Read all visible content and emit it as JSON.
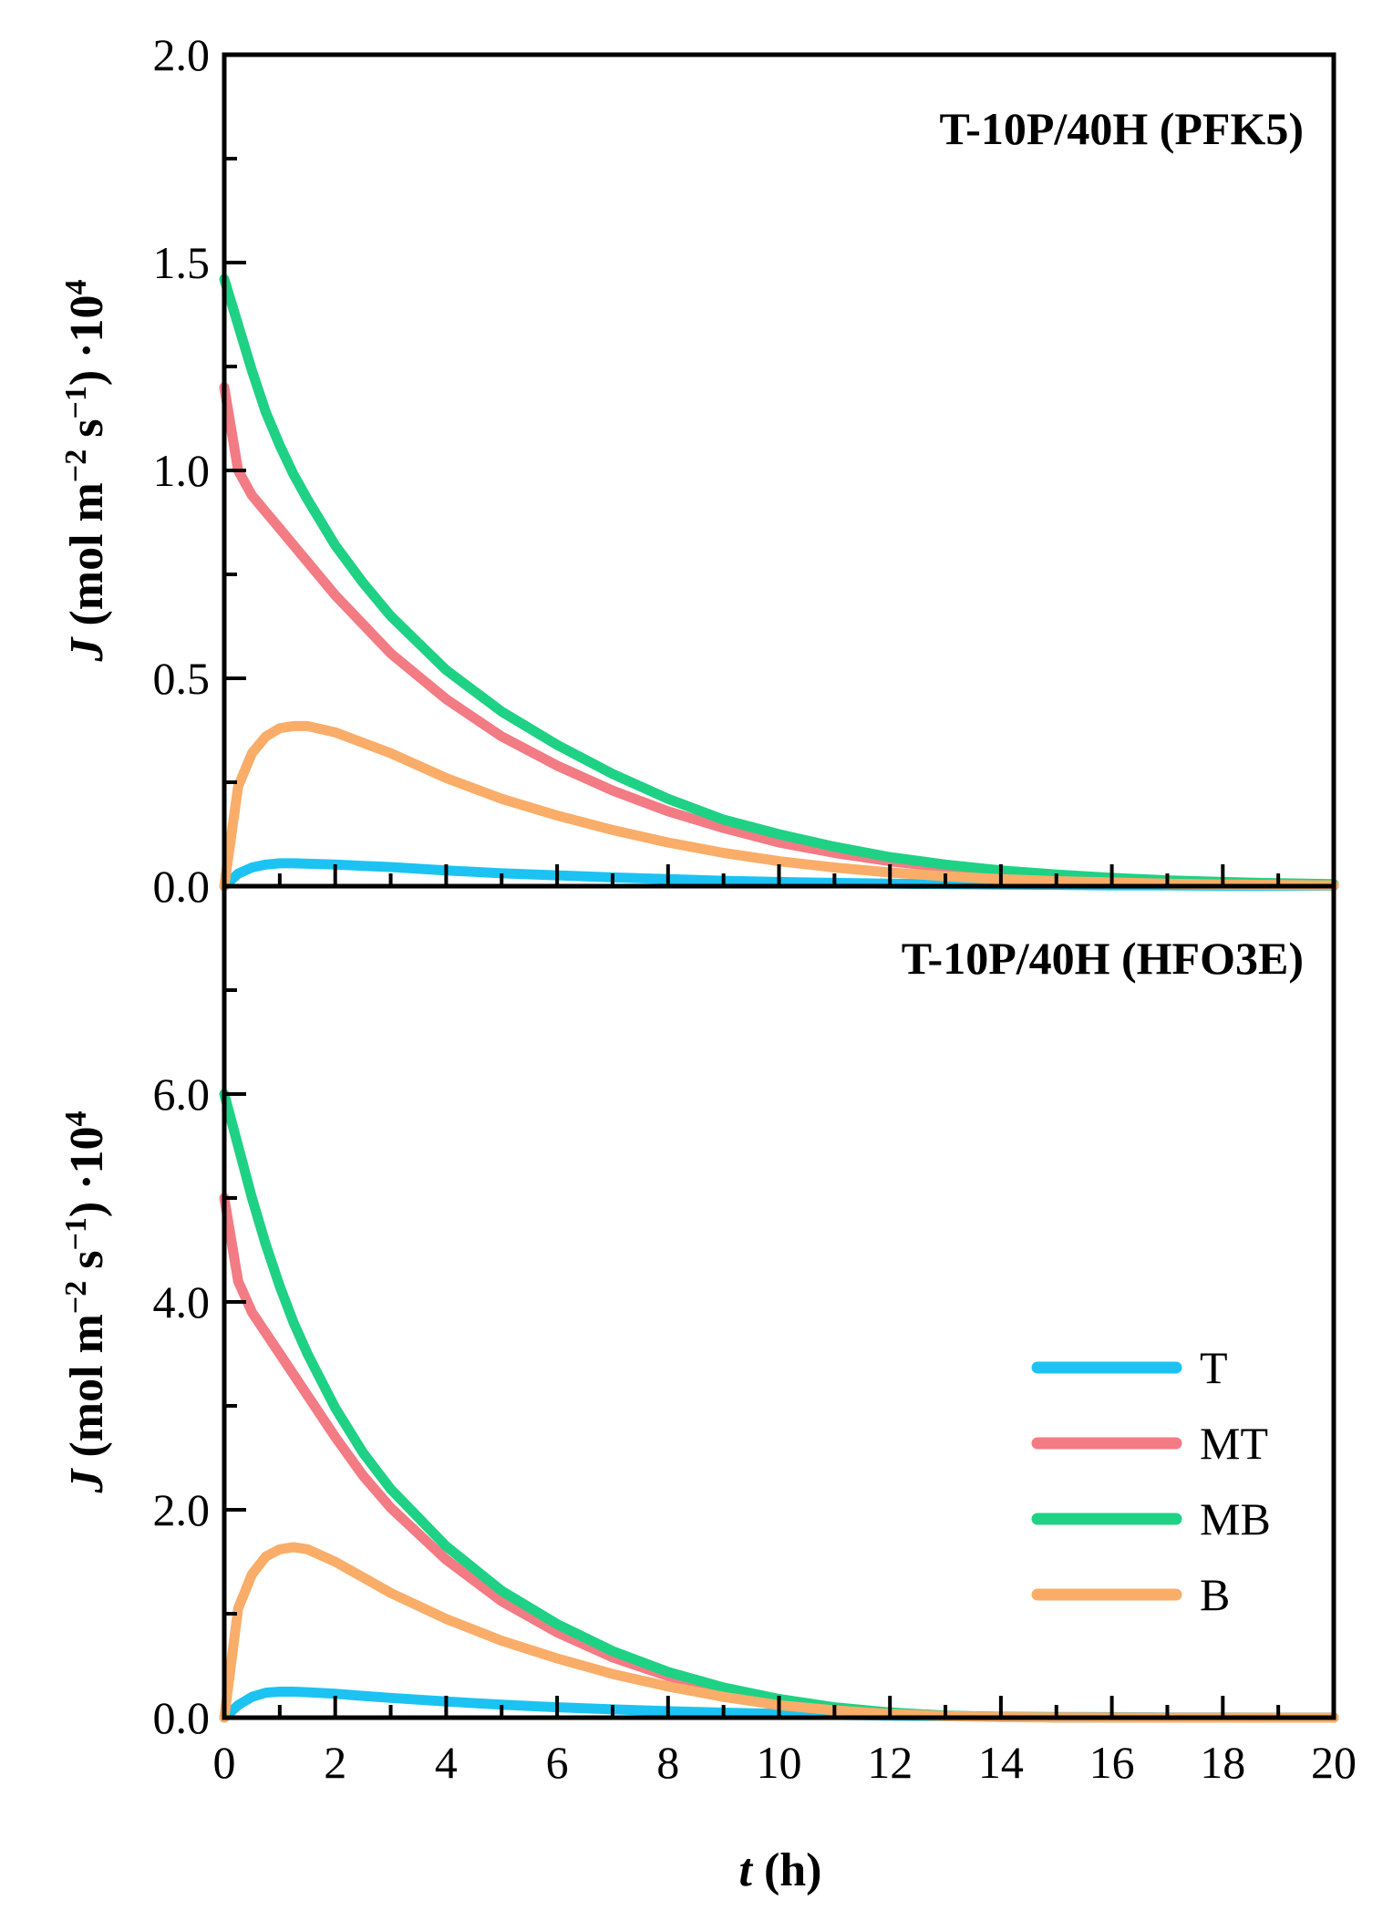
{
  "chart_data": {
    "type": "line",
    "xlabel": {
      "var": "t",
      "unit": " (h)"
    },
    "xlim": [
      0,
      20
    ],
    "xticks": [
      "0",
      "2",
      "4",
      "6",
      "8",
      "10",
      "12",
      "14",
      "16",
      "18",
      "20"
    ],
    "colors": {
      "T": "#1cc3f2",
      "MT": "#f27b84",
      "MB": "#1fd184",
      "B": "#f9ad69"
    },
    "legend": {
      "location": "lower-right",
      "panel": "bottom",
      "entries": [
        "T",
        "MT",
        "MB",
        "B"
      ]
    },
    "x": [
      0,
      0.25,
      0.5,
      0.75,
      1,
      1.25,
      1.5,
      2,
      2.5,
      3,
      4,
      5,
      6,
      7,
      8,
      9,
      10,
      11,
      12,
      13,
      14,
      15,
      16,
      17,
      18,
      19,
      20
    ],
    "panels": [
      {
        "title": "T-10P/40H (PFK5)",
        "ylabel": {
          "var": "J",
          "unit": " (mol m",
          "exp1": "−2",
          "mid": " s",
          "exp2": "−1",
          "tail": ") ·10",
          "exp3": "4"
        },
        "ylim": [
          0,
          2.0
        ],
        "yticks": [
          "0.0",
          "0.5",
          "1.0",
          "1.5",
          "2.0"
        ],
        "series": [
          {
            "name": "T",
            "values": [
              0,
              0.03,
              0.045,
              0.052,
              0.055,
              0.055,
              0.054,
              0.052,
              0.049,
              0.046,
              0.038,
              0.031,
              0.026,
              0.021,
              0.017,
              0.013,
              0.01,
              0.008,
              0.006,
              0.005,
              0.004,
              0.003,
              0.002,
              0.002,
              0.001,
              0.001,
              0.001
            ]
          },
          {
            "name": "MT",
            "values": [
              1.2,
              1.0,
              0.94,
              0.9,
              0.86,
              0.82,
              0.78,
              0.7,
              0.63,
              0.56,
              0.45,
              0.36,
              0.29,
              0.23,
              0.18,
              0.14,
              0.105,
              0.08,
              0.06,
              0.045,
              0.034,
              0.025,
              0.018,
              0.013,
              0.009,
              0.006,
              0.004
            ]
          },
          {
            "name": "MB",
            "values": [
              1.46,
              1.35,
              1.24,
              1.14,
              1.06,
              0.99,
              0.93,
              0.82,
              0.73,
              0.65,
              0.52,
              0.42,
              0.34,
              0.27,
              0.21,
              0.16,
              0.125,
              0.095,
              0.07,
              0.052,
              0.038,
              0.028,
              0.02,
              0.014,
              0.01,
              0.007,
              0.005
            ]
          },
          {
            "name": "B",
            "values": [
              0,
              0.24,
              0.32,
              0.36,
              0.38,
              0.385,
              0.385,
              0.37,
              0.345,
              0.32,
              0.26,
              0.21,
              0.17,
              0.135,
              0.105,
              0.08,
              0.06,
              0.045,
              0.033,
              0.024,
              0.017,
              0.012,
              0.009,
              0.006,
              0.004,
              0.003,
              0.002
            ]
          }
        ]
      },
      {
        "title": "T-10P/40H (HFO3E)",
        "ylabel": {
          "var": "J",
          "unit": " (mol m",
          "exp1": "−2",
          "mid": " s",
          "exp2": "−1",
          "tail": ") ·10",
          "exp3": "4"
        },
        "ylim": [
          0,
          8.0
        ],
        "yticks": [
          "0.0",
          "2.0",
          "4.0",
          "6.0"
        ],
        "ytick_values": [
          0,
          2,
          4,
          6
        ],
        "series": [
          {
            "name": "T",
            "values": [
              0,
              0.12,
              0.2,
              0.24,
              0.25,
              0.25,
              0.245,
              0.23,
              0.21,
              0.19,
              0.155,
              0.125,
              0.1,
              0.08,
              0.062,
              0.048,
              0.036,
              0.027,
              0.02,
              0.014,
              0.01,
              0.007,
              0.005,
              0.003,
              0.002,
              0.001,
              0.001
            ]
          },
          {
            "name": "MT",
            "values": [
              5.0,
              4.2,
              3.9,
              3.7,
              3.5,
              3.3,
              3.1,
              2.7,
              2.33,
              2.02,
              1.52,
              1.12,
              0.82,
              0.58,
              0.4,
              0.26,
              0.16,
              0.09,
              0.045,
              0.02,
              0.008,
              0.003,
              0.001,
              0,
              0,
              0,
              0
            ]
          },
          {
            "name": "MB",
            "values": [
              6.0,
              5.5,
              5.0,
              4.55,
              4.15,
              3.8,
              3.5,
              2.98,
              2.55,
              2.2,
              1.65,
              1.22,
              0.9,
              0.64,
              0.44,
              0.29,
              0.18,
              0.1,
              0.05,
              0.02,
              0.008,
              0.003,
              0.001,
              0,
              0,
              0,
              0
            ]
          },
          {
            "name": "B",
            "values": [
              0,
              1.05,
              1.38,
              1.55,
              1.62,
              1.64,
              1.62,
              1.5,
              1.35,
              1.2,
              0.95,
              0.74,
              0.57,
              0.42,
              0.3,
              0.2,
              0.12,
              0.07,
              0.035,
              0.015,
              0.005,
              0.002,
              0.001,
              0,
              0,
              0,
              0
            ]
          }
        ]
      }
    ]
  }
}
